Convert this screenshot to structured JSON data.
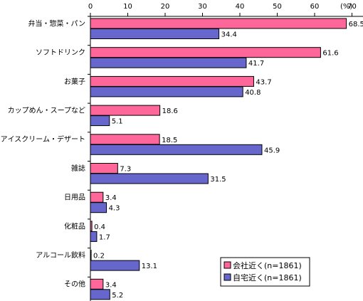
{
  "chart_data": {
    "type": "bar",
    "orientation": "horizontal",
    "unit": "(%)",
    "xlim": [
      0,
      80
    ],
    "x_ticks": [
      "0",
      "10",
      "20",
      "30",
      "40",
      "50",
      "60",
      "70",
      "80"
    ],
    "categories": [
      "弁当・惣菜・パン",
      "ソフトドリンク",
      "お菓子",
      "カップめん・スープなど",
      "アイスクリーム・デザート",
      "雑誌",
      "日用品",
      "化粧品",
      "アルコール飲料",
      "その他"
    ],
    "series": [
      {
        "name": "会社近く(n=1861)",
        "color": "#ff6699",
        "values": [
          68.5,
          61.6,
          43.7,
          18.6,
          18.5,
          7.3,
          3.4,
          0.4,
          0.2,
          3.4
        ]
      },
      {
        "name": "自宅近く(n=1861)",
        "color": "#6666cc",
        "values": [
          34.4,
          41.7,
          40.8,
          5.1,
          45.9,
          31.5,
          4.3,
          1.7,
          13.1,
          5.2
        ]
      }
    ],
    "legend_position": "bottom-right",
    "grid": false
  }
}
